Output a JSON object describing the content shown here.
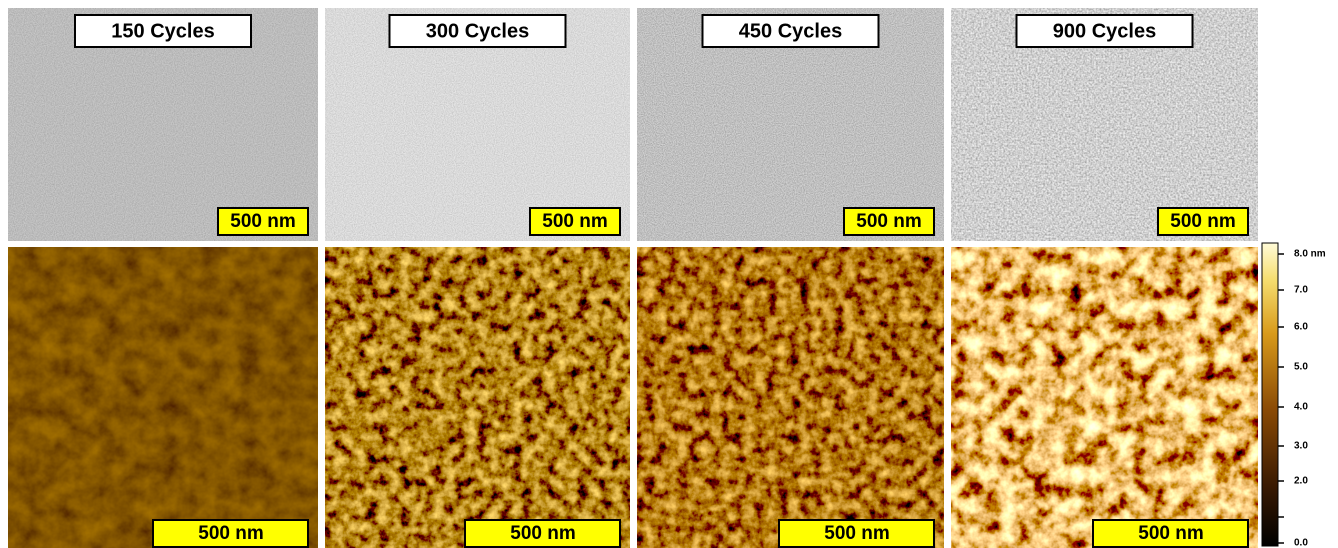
{
  "panels": [
    {
      "label": "150 Cycles",
      "sem_scale": "500 nm",
      "afm_scale": "500 nm"
    },
    {
      "label": "300 Cycles",
      "sem_scale": "500 nm",
      "afm_scale": "500 nm"
    },
    {
      "label": "450 Cycles",
      "sem_scale": "500 nm",
      "afm_scale": "500 nm"
    },
    {
      "label": "900 Cycles",
      "sem_scale": "500 nm",
      "afm_scale": "500 nm"
    }
  ],
  "colorbar": {
    "ticks": [
      "8.0 nm",
      "7.0",
      "6.0",
      "5.0",
      "4.0",
      "3.0",
      "2.0",
      "0.0"
    ]
  }
}
